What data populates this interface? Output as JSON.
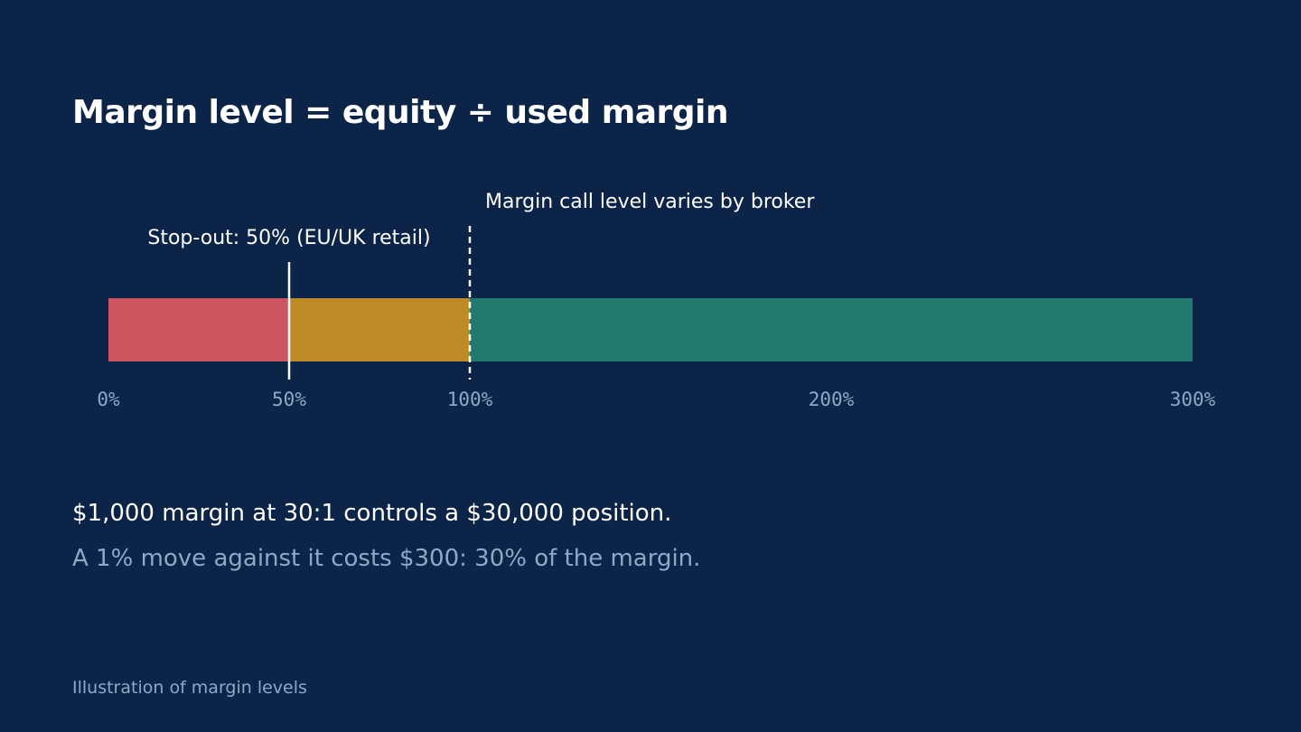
{
  "title": "Margin level = equity ÷ used margin",
  "scale": {
    "min": 0,
    "max": 300,
    "unit_suffix": "%",
    "zones": [
      {
        "name": "stop-out-zone",
        "from": 0,
        "to": 50,
        "color": "#cc5560"
      },
      {
        "name": "margin-call-zone",
        "from": 50,
        "to": 100,
        "color": "#be8a25"
      },
      {
        "name": "safe-zone",
        "from": 100,
        "to": 300,
        "color": "#227a6e"
      }
    ],
    "ticks": [
      0,
      50,
      100,
      200,
      300
    ],
    "markers": [
      {
        "name": "stop-out",
        "value": 50,
        "label": "Stop-out: 50% (EU/UK retail)",
        "style": "solid",
        "label_align": "center"
      },
      {
        "name": "margin-call",
        "value": 100,
        "label": "Margin call level varies by broker",
        "style": "dashed",
        "label_align": "start"
      }
    ]
  },
  "explanation": {
    "line1": "$1,000 margin at 30:1 controls a $30,000 position.",
    "line2": "A 1% move against it costs $300: 30% of the margin."
  },
  "caption": "Illustration of margin levels",
  "colors": {
    "background": "#0b2447",
    "text": "#ffffff",
    "muted": "#8fa8c8"
  }
}
